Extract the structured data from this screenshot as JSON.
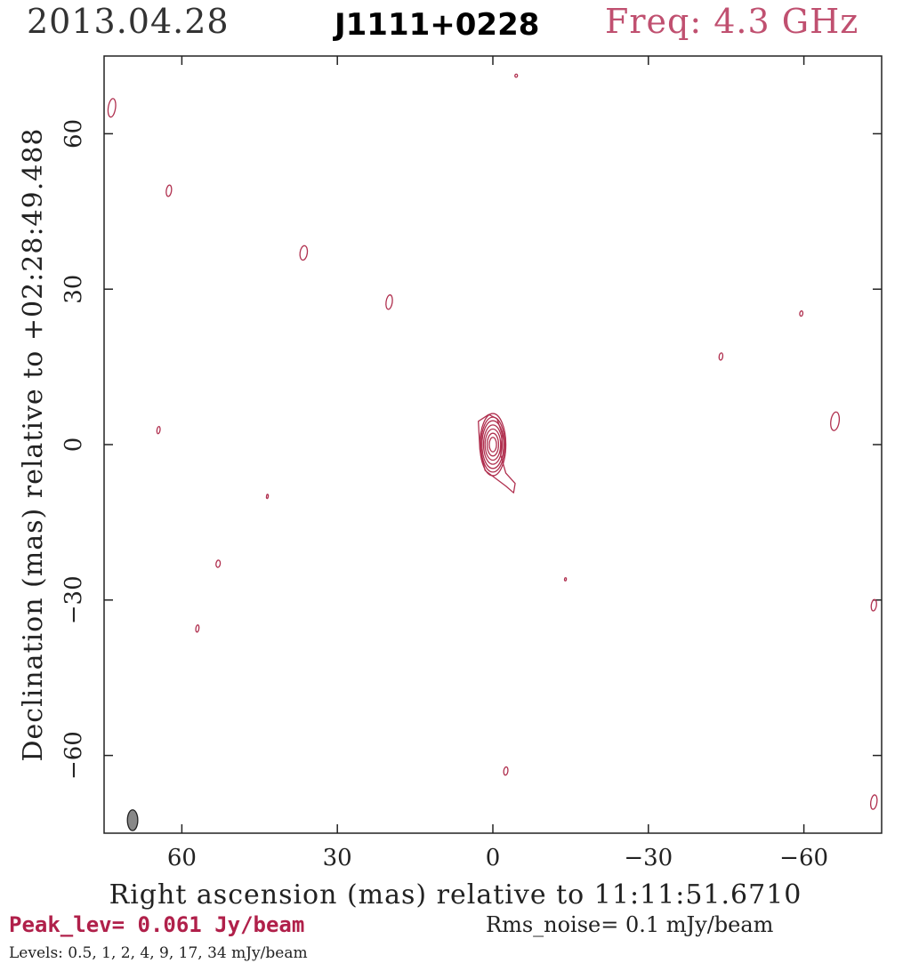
{
  "header": {
    "date": "2013.04.28",
    "source": "J1111+0228",
    "freq": "Freq: 4.3 GHz"
  },
  "chart_data": {
    "type": "contour",
    "xlabel": "Right ascension (mas) relative to 11:11:51.6710",
    "ylabel": "Declination (mas) relative to +02:28:49.488",
    "xlim": [
      75,
      -75
    ],
    "ylim": [
      -75,
      75
    ],
    "x_ticks": [
      60,
      30,
      0,
      -30,
      -60
    ],
    "y_ticks": [
      60,
      30,
      0,
      -30,
      -60
    ],
    "x_tick_labels": [
      "60",
      "30",
      "0",
      "−30",
      "−60"
    ],
    "y_tick_labels": [
      "60",
      "30",
      "0",
      "−30",
      "−60"
    ],
    "contour_color": "#b0304f",
    "core": {
      "x": 0,
      "y": 0,
      "rings": [
        {
          "rx": 2.5,
          "ry": 6.0
        },
        {
          "rx": 2.3,
          "ry": 5.3
        },
        {
          "rx": 2.1,
          "ry": 4.6
        },
        {
          "rx": 1.8,
          "ry": 3.8
        },
        {
          "rx": 1.5,
          "ry": 3.0
        },
        {
          "rx": 1.1,
          "ry": 2.2
        },
        {
          "rx": 0.7,
          "ry": 1.4
        }
      ],
      "lowest_contour": [
        [
          0.8,
          5.8
        ],
        [
          2.8,
          4.5
        ],
        [
          2.5,
          -1
        ],
        [
          1.5,
          -5
        ],
        [
          -0.5,
          -6.5
        ],
        [
          -2.5,
          -8
        ],
        [
          -4,
          -9.3
        ],
        [
          -4.3,
          -7.5
        ],
        [
          -2.5,
          -5.5
        ],
        [
          -1.5,
          -2
        ],
        [
          -1.8,
          2
        ],
        [
          -0.8,
          5
        ]
      ]
    },
    "noise_islands": [
      {
        "x": 73.5,
        "y": 65.0,
        "rx": 0.7,
        "ry": 1.8
      },
      {
        "x": 62.5,
        "y": 49.0,
        "rx": 0.5,
        "ry": 1.1
      },
      {
        "x": 36.5,
        "y": 37.0,
        "rx": 0.7,
        "ry": 1.4
      },
      {
        "x": 20.0,
        "y": 27.5,
        "rx": 0.6,
        "ry": 1.4
      },
      {
        "x": 64.5,
        "y": 2.8,
        "rx": 0.3,
        "ry": 0.7
      },
      {
        "x": 43.5,
        "y": -10.0,
        "rx": 0.15,
        "ry": 0.4
      },
      {
        "x": 53.0,
        "y": -23.0,
        "rx": 0.4,
        "ry": 0.7
      },
      {
        "x": 57.0,
        "y": -35.5,
        "rx": 0.3,
        "ry": 0.7
      },
      {
        "x": -4.5,
        "y": 71.2,
        "rx": 0.25,
        "ry": 0.3
      },
      {
        "x": -44.0,
        "y": 17.0,
        "rx": 0.35,
        "ry": 0.7
      },
      {
        "x": -59.5,
        "y": 25.3,
        "rx": 0.3,
        "ry": 0.5
      },
      {
        "x": -66.0,
        "y": 4.5,
        "rx": 0.8,
        "ry": 1.8
      },
      {
        "x": -14.0,
        "y": -26.0,
        "rx": 0.1,
        "ry": 0.3
      },
      {
        "x": -73.5,
        "y": -31.0,
        "rx": 0.5,
        "ry": 1.1
      },
      {
        "x": -2.5,
        "y": -63.0,
        "rx": 0.4,
        "ry": 0.8
      },
      {
        "x": -73.5,
        "y": -69.0,
        "rx": 0.6,
        "ry": 1.4
      }
    ],
    "beam": {
      "x": 69.5,
      "y": -72.5,
      "rx": 1.0,
      "ry": 2.0,
      "fill": "#888888"
    }
  },
  "footer": {
    "peak": "Peak_lev=  0.061 Jy/beam",
    "rms": "Rms_noise=  0.1 mJy/beam",
    "levels": "Levels: 0.5,    1,    2,    4,    9,   17,   34  mJy/beam"
  }
}
